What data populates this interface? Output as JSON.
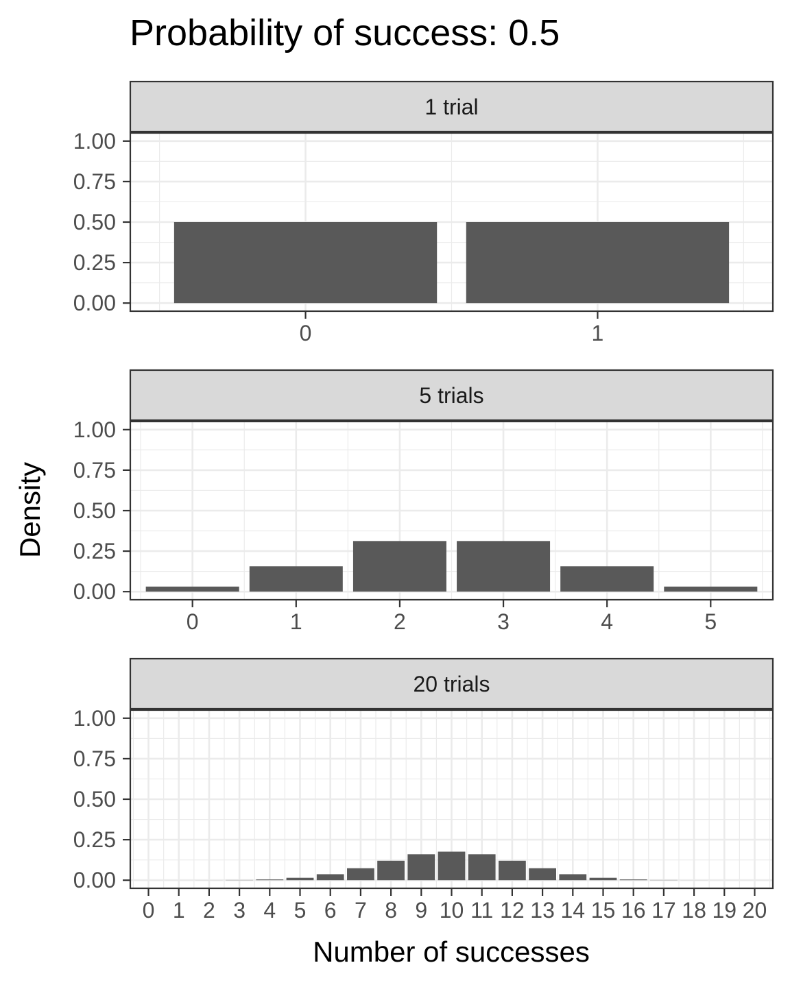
{
  "chart_data": {
    "type": "bar",
    "title": "Probability of success: 0.5",
    "xlabel": "Number of successes",
    "ylabel": "Density",
    "ylim": [
      0,
      1
    ],
    "yticks": [
      "0.00",
      "0.25",
      "0.50",
      "0.75",
      "1.00"
    ],
    "grid": true,
    "legend": "none",
    "colors": {
      "bar": "#595959",
      "strip_fill": "#d9d9d9",
      "strip_border": "#333333",
      "panel_border": "#333333",
      "grid_major": "#ebebeb",
      "tick_text": "#4d4d4d"
    },
    "panels": [
      {
        "label": "1 trial",
        "categories": [
          "0",
          "1"
        ],
        "values": [
          0.5,
          0.5
        ]
      },
      {
        "label": "5 trials",
        "categories": [
          "0",
          "1",
          "2",
          "3",
          "4",
          "5"
        ],
        "values": [
          0.03125,
          0.15625,
          0.3125,
          0.3125,
          0.15625,
          0.03125
        ]
      },
      {
        "label": "20 trials",
        "categories": [
          "0",
          "1",
          "2",
          "3",
          "4",
          "5",
          "6",
          "7",
          "8",
          "9",
          "10",
          "11",
          "12",
          "13",
          "14",
          "15",
          "16",
          "17",
          "18",
          "19",
          "20"
        ],
        "values": [
          1e-06,
          1.9e-05,
          0.000181,
          0.001087,
          0.004621,
          0.014786,
          0.036964,
          0.073929,
          0.120134,
          0.160179,
          0.176197,
          0.160179,
          0.120134,
          0.073929,
          0.036964,
          0.014786,
          0.004621,
          0.001087,
          0.000181,
          1.9e-05,
          1e-06
        ]
      }
    ]
  }
}
